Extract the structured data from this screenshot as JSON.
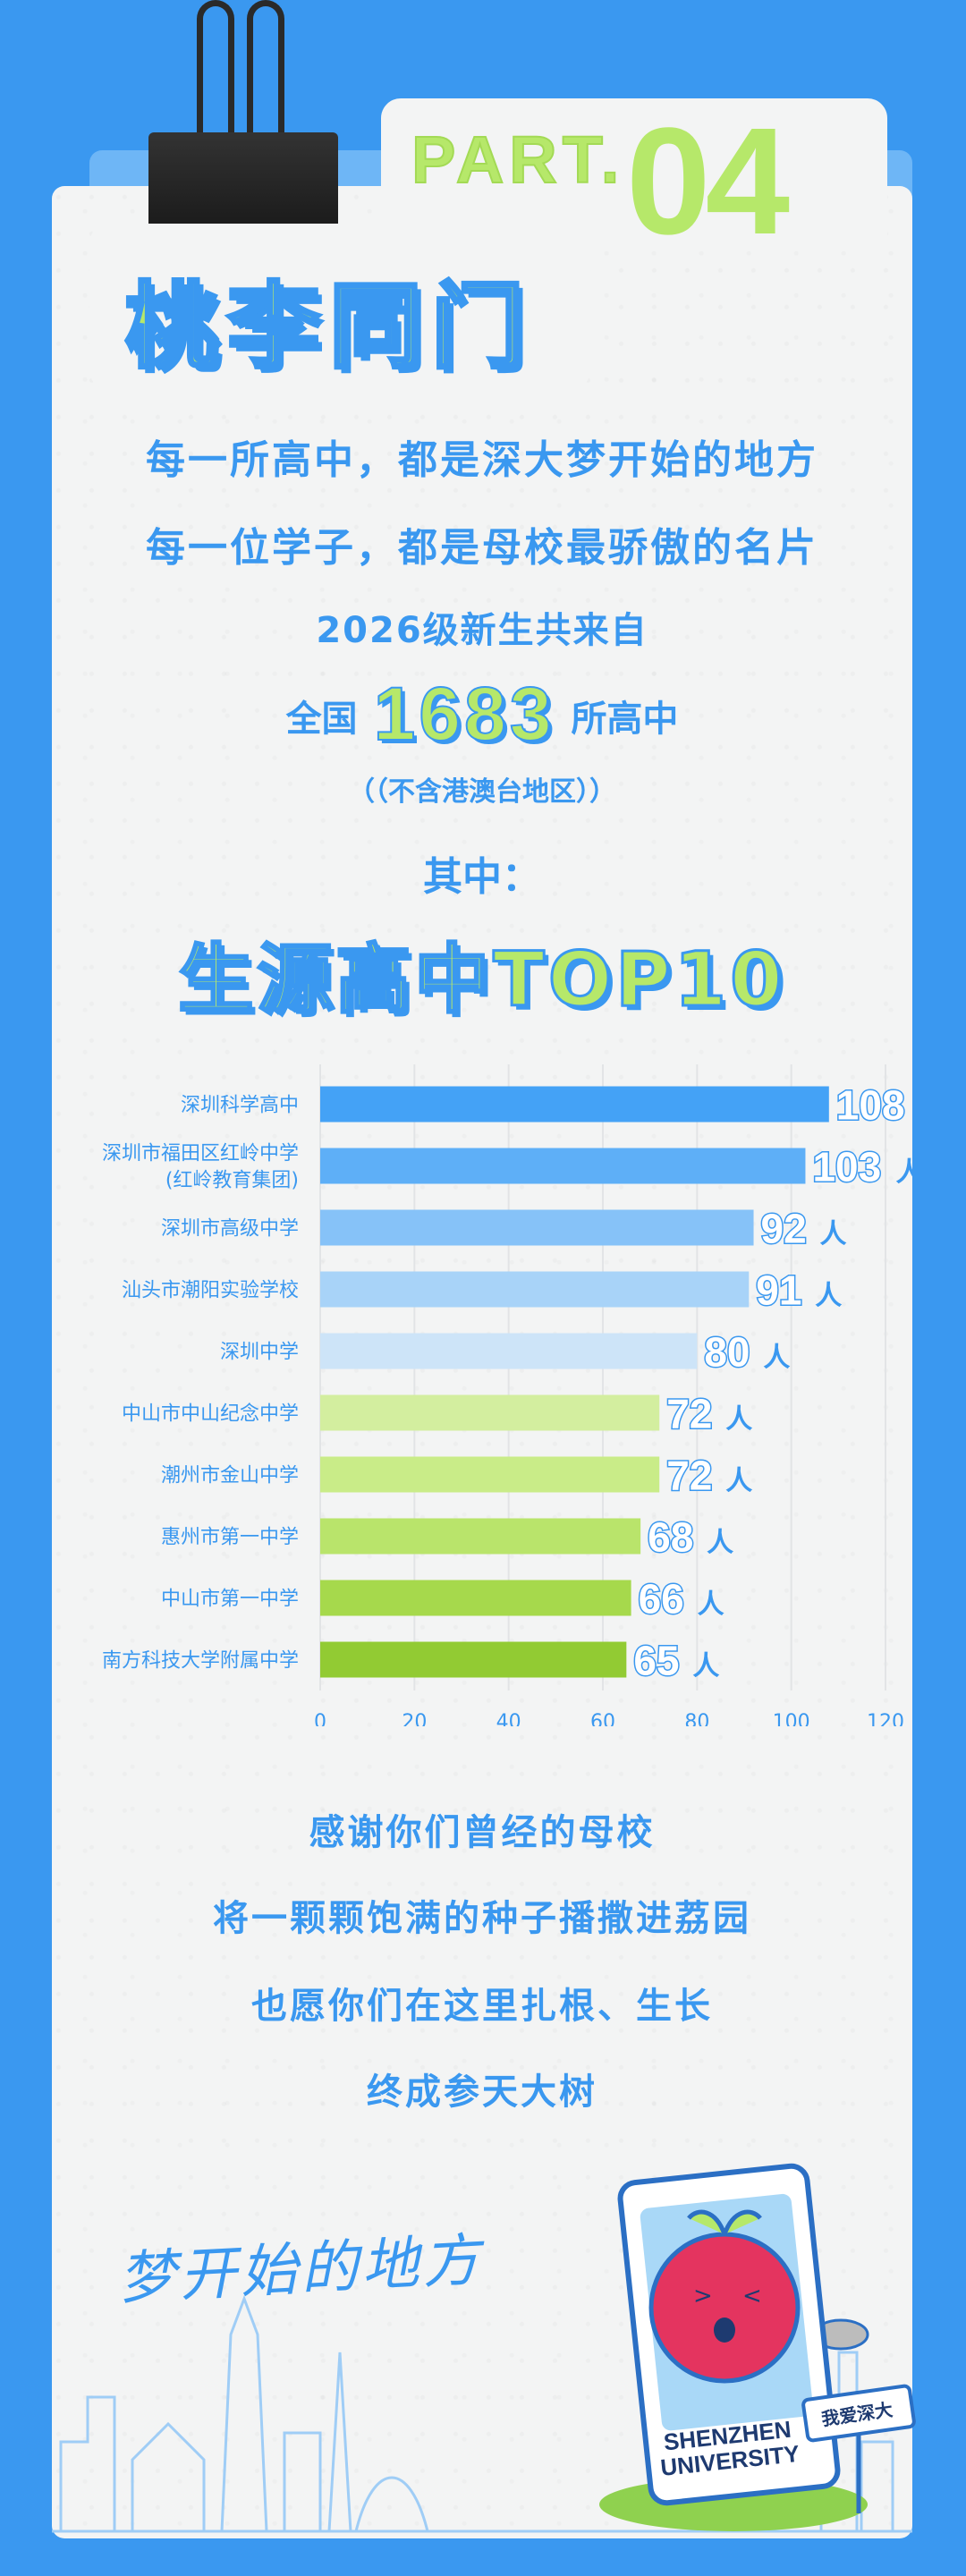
{
  "header": {
    "part_label": "PART.",
    "part_number": "04",
    "title": "桃李同门"
  },
  "intro": {
    "line1": "每一所高中，都是深大梦开始的地方",
    "line2": "每一位学子，都是母校最骄傲的名片",
    "line3": "2026级新生共来自",
    "line4_prefix": "全国",
    "line4_number": "1683",
    "line4_suffix": "所高中",
    "note": "（（不含港澳台地区））",
    "among": "其中：",
    "chart_title": "生源高中TOP10"
  },
  "chart_data": {
    "type": "bar",
    "orientation": "horizontal",
    "categories": [
      "深圳科学高中",
      "深圳市福田区红岭中学\n(红岭教育集团)",
      "深圳市高级中学",
      "汕头市潮阳实验学校",
      "深圳中学",
      "中山市中山纪念中学",
      "潮州市金山中学",
      "惠州市第一中学",
      "中山市第一中学",
      "南方科技大学附属中学"
    ],
    "values": [
      108,
      103,
      92,
      91,
      80,
      72,
      72,
      68,
      66,
      65
    ],
    "value_unit": "人",
    "xlim": [
      0,
      120
    ],
    "xticks": [
      0,
      20,
      40,
      60,
      80,
      100,
      120
    ],
    "colors": [
      "#44a2f6",
      "#5eaff7",
      "#86c2f8",
      "#a8d3f8",
      "#cde4f8",
      "#d3ee9f",
      "#c9ec88",
      "#b9e46b",
      "#a6d94c",
      "#92cb33"
    ],
    "grid": true,
    "legend": "none"
  },
  "outro": {
    "line1": "感谢你们曾经的母校",
    "line2": "将一颗颗饱满的种子播撒进荔园",
    "line3": "也愿你们在这里扎根、生长",
    "line4": "终成参天大树"
  },
  "footer": {
    "slogan": "梦开始的地方",
    "card_text_1": "SHENZHEN",
    "card_text_2": "UNIVERSITY",
    "sign_text": "我爱深大"
  }
}
